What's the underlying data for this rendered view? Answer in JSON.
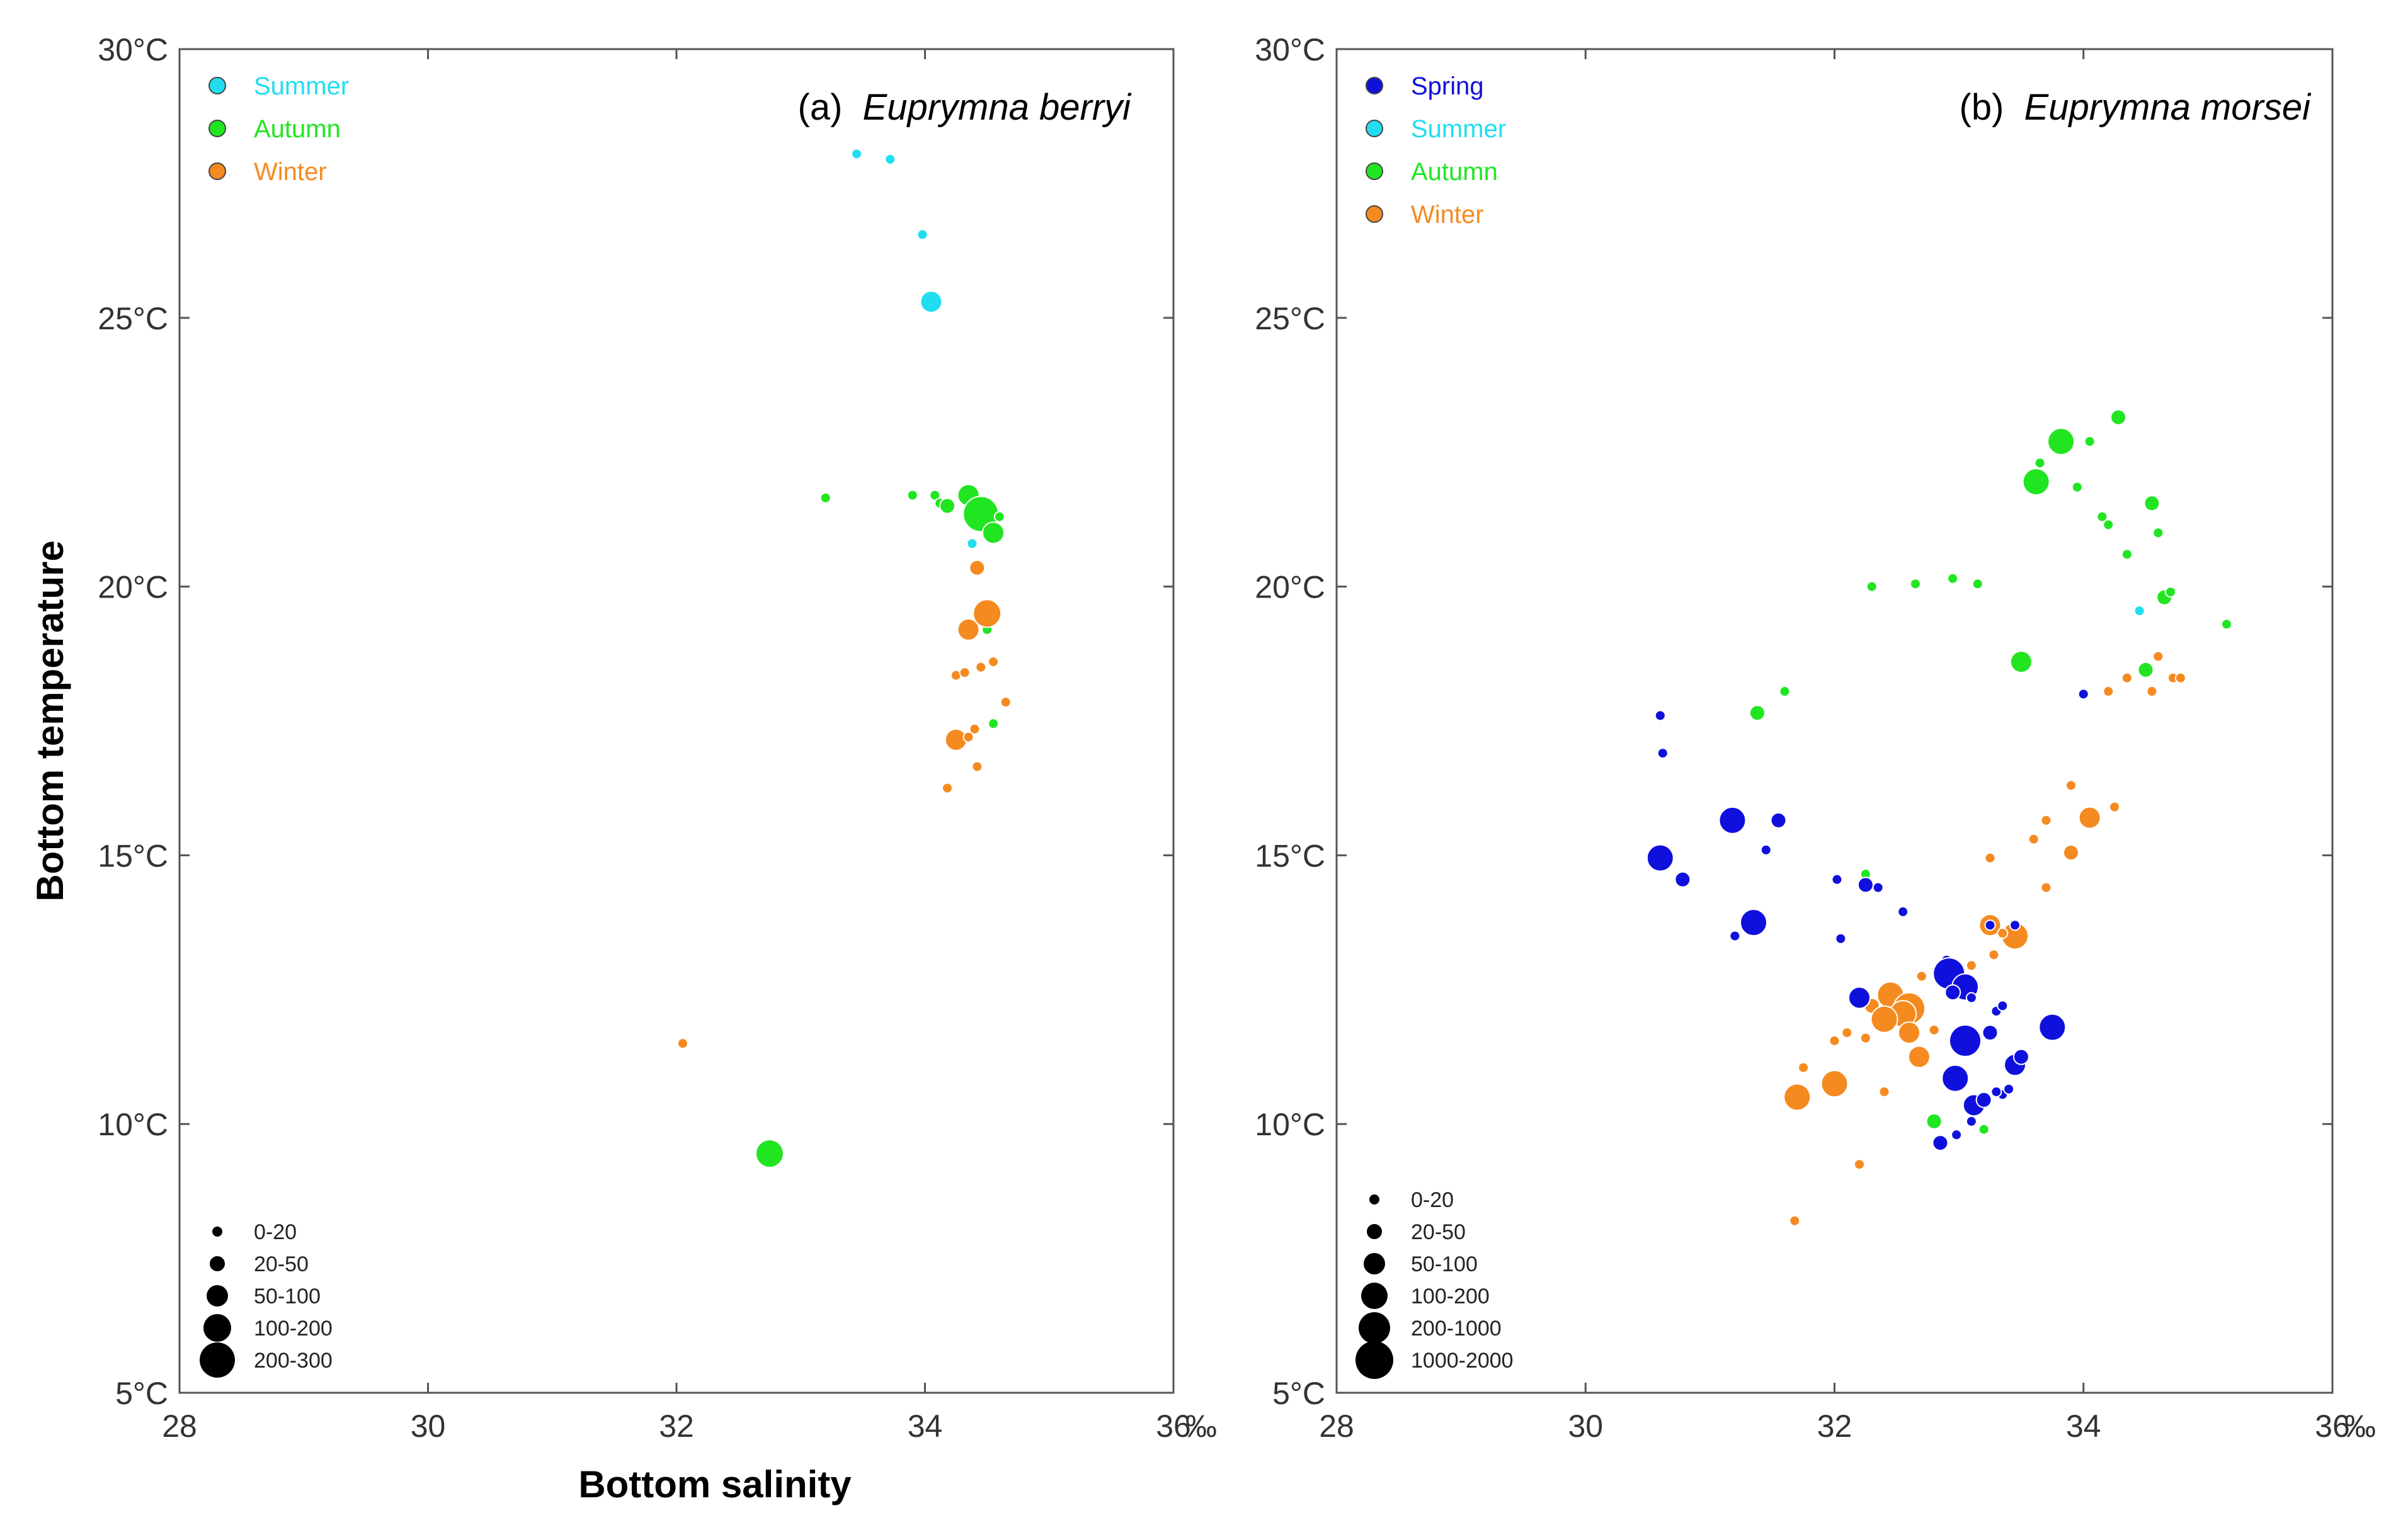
{
  "colors": {
    "Spring": "#1010dd",
    "Summer": "#22ddf0",
    "Autumn": "#22e522",
    "Winter": "#f58a20"
  },
  "axis": {
    "xlabel": "Bottom salinity",
    "ylabel": "Bottom temperature",
    "xunit": "‰"
  },
  "chart_data": [
    {
      "type": "scatter",
      "title_prefix": "(a)",
      "title_species": "Euprymna berryi",
      "xlabel": "Bottom salinity",
      "ylabel": "Bottom temperature",
      "xlim": [
        28,
        36
      ],
      "ylim": [
        5,
        30
      ],
      "xticks": [
        28,
        30,
        32,
        34,
        36
      ],
      "yticks": [
        5,
        10,
        15,
        20,
        25,
        30
      ],
      "xtick_labels": [
        "28",
        "30",
        "32",
        "34",
        "36"
      ],
      "ytick_labels": [
        "5°C",
        "10°C",
        "15°C",
        "20°C",
        "25°C",
        "30°C"
      ],
      "legend_seasons": [
        "Summer",
        "Autumn",
        "Winter"
      ],
      "size_classes": [
        "0-20",
        "20-50",
        "50-100",
        "100-200",
        "200-300"
      ],
      "series": [
        {
          "name": "Summer",
          "points": [
            [
              33.45,
              28.05,
              0
            ],
            [
              33.72,
              27.95,
              0
            ],
            [
              33.98,
              26.55,
              0
            ],
            [
              34.05,
              25.3,
              2
            ],
            [
              34.38,
              20.8,
              0
            ]
          ]
        },
        {
          "name": "Autumn",
          "points": [
            [
              33.2,
              21.65,
              0
            ],
            [
              33.9,
              21.7,
              0
            ],
            [
              34.08,
              21.7,
              0
            ],
            [
              34.12,
              21.55,
              0
            ],
            [
              34.18,
              21.5,
              1
            ],
            [
              34.35,
              21.7,
              2
            ],
            [
              34.45,
              21.35,
              4
            ],
            [
              34.55,
              21.0,
              2
            ],
            [
              34.6,
              21.3,
              0
            ],
            [
              34.5,
              19.2,
              0
            ],
            [
              34.55,
              17.45,
              0
            ],
            [
              32.75,
              9.45,
              3
            ]
          ]
        },
        {
          "name": "Winter",
          "points": [
            [
              34.42,
              20.35,
              1
            ],
            [
              34.5,
              19.5,
              3
            ],
            [
              34.35,
              19.2,
              2
            ],
            [
              34.25,
              18.35,
              0
            ],
            [
              34.32,
              18.4,
              0
            ],
            [
              34.45,
              18.5,
              0
            ],
            [
              34.55,
              18.6,
              0
            ],
            [
              34.65,
              17.85,
              0
            ],
            [
              34.25,
              17.15,
              2
            ],
            [
              34.4,
              17.35,
              0
            ],
            [
              34.35,
              17.2,
              0
            ],
            [
              34.42,
              16.65,
              0
            ],
            [
              34.18,
              16.25,
              0
            ],
            [
              32.05,
              11.5,
              0
            ]
          ]
        }
      ]
    },
    {
      "type": "scatter",
      "title_prefix": "(b)",
      "title_species": "Euprymna morsei",
      "xlabel": "Bottom salinity",
      "ylabel": "Bottom temperature",
      "xlim": [
        28,
        36
      ],
      "ylim": [
        5,
        30
      ],
      "xticks": [
        28,
        30,
        32,
        34,
        36
      ],
      "yticks": [
        5,
        10,
        15,
        20,
        25,
        30
      ],
      "xtick_labels": [
        "28",
        "30",
        "32",
        "34",
        "36"
      ],
      "ytick_labels": [
        "5°C",
        "10°C",
        "15°C",
        "20°C",
        "25°C",
        "30°C"
      ],
      "legend_seasons": [
        "Spring",
        "Summer",
        "Autumn",
        "Winter"
      ],
      "size_classes": [
        "0-20",
        "20-50",
        "50-100",
        "100-200",
        "200-1000",
        "1000-2000"
      ],
      "series": [
        {
          "name": "Autumn",
          "points": [
            [
              34.28,
              23.15,
              1
            ],
            [
              33.82,
              22.7,
              3
            ],
            [
              34.05,
              22.7,
              0
            ],
            [
              33.65,
              22.3,
              0
            ],
            [
              33.62,
              21.95,
              3
            ],
            [
              33.95,
              21.85,
              0
            ],
            [
              34.55,
              21.55,
              1
            ],
            [
              34.15,
              21.3,
              0
            ],
            [
              34.2,
              21.15,
              0
            ],
            [
              34.6,
              21.0,
              0
            ],
            [
              34.35,
              20.6,
              0
            ],
            [
              34.65,
              19.8,
              1
            ],
            [
              34.7,
              19.9,
              0
            ],
            [
              32.3,
              20.0,
              0
            ],
            [
              32.65,
              20.05,
              0
            ],
            [
              32.95,
              20.15,
              0
            ],
            [
              33.15,
              20.05,
              0
            ],
            [
              35.15,
              19.3,
              0
            ],
            [
              33.5,
              18.6,
              2
            ],
            [
              34.5,
              18.45,
              1
            ],
            [
              31.38,
              17.65,
              1
            ],
            [
              31.6,
              18.05,
              0
            ],
            [
              32.25,
              14.65,
              0
            ],
            [
              33.2,
              10.45,
              0
            ],
            [
              32.8,
              10.05,
              1
            ],
            [
              33.2,
              9.9,
              0
            ]
          ]
        },
        {
          "name": "Summer",
          "points": [
            [
              34.45,
              19.55,
              0
            ]
          ]
        },
        {
          "name": "Winter",
          "points": [
            [
              34.6,
              18.7,
              0
            ],
            [
              34.55,
              18.05,
              0
            ],
            [
              34.72,
              18.3,
              0
            ],
            [
              34.78,
              18.3,
              0
            ],
            [
              34.35,
              18.3,
              0
            ],
            [
              34.2,
              18.05,
              0
            ],
            [
              33.9,
              16.3,
              0
            ],
            [
              34.25,
              15.9,
              0
            ],
            [
              34.05,
              15.7,
              2
            ],
            [
              33.7,
              15.65,
              0
            ],
            [
              33.9,
              15.05,
              1
            ],
            [
              33.6,
              15.3,
              0
            ],
            [
              33.25,
              14.95,
              0
            ],
            [
              33.7,
              14.4,
              0
            ],
            [
              33.45,
              13.5,
              3
            ],
            [
              33.25,
              13.7,
              2
            ],
            [
              33.35,
              13.55,
              0
            ],
            [
              33.28,
              13.15,
              0
            ],
            [
              33.1,
              12.95,
              0
            ],
            [
              32.7,
              12.75,
              0
            ],
            [
              32.95,
              12.8,
              0
            ],
            [
              32.45,
              12.4,
              3
            ],
            [
              32.3,
              12.2,
              1
            ],
            [
              32.6,
              12.15,
              4
            ],
            [
              32.55,
              12.05,
              3
            ],
            [
              32.4,
              11.95,
              3
            ],
            [
              32.6,
              11.7,
              2
            ],
            [
              32.8,
              11.75,
              0
            ],
            [
              32.25,
              11.6,
              0
            ],
            [
              32.68,
              11.25,
              2
            ],
            [
              32.0,
              11.55,
              0
            ],
            [
              32.1,
              11.7,
              0
            ],
            [
              31.75,
              11.05,
              0
            ],
            [
              32.0,
              10.75,
              3
            ],
            [
              31.7,
              10.5,
              3
            ],
            [
              32.4,
              10.6,
              0
            ],
            [
              32.2,
              9.25,
              0
            ],
            [
              31.68,
              8.2,
              0
            ]
          ]
        },
        {
          "name": "Spring",
          "points": [
            [
              30.6,
              17.6,
              0
            ],
            [
              30.62,
              16.9,
              0
            ],
            [
              30.6,
              14.95,
              3
            ],
            [
              30.78,
              14.55,
              1
            ],
            [
              31.18,
              15.65,
              3
            ],
            [
              31.55,
              15.65,
              1
            ],
            [
              31.45,
              15.1,
              0
            ],
            [
              31.35,
              13.75,
              3
            ],
            [
              31.2,
              13.5,
              0
            ],
            [
              32.02,
              14.55,
              0
            ],
            [
              32.05,
              13.45,
              0
            ],
            [
              32.25,
              14.45,
              1
            ],
            [
              32.35,
              14.4,
              0
            ],
            [
              32.55,
              13.95,
              0
            ],
            [
              33.25,
              13.7,
              0
            ],
            [
              33.45,
              13.7,
              0
            ],
            [
              32.9,
              13.05,
              0
            ],
            [
              32.92,
              12.8,
              4
            ],
            [
              33.05,
              12.55,
              3
            ],
            [
              32.95,
              12.45,
              1
            ],
            [
              33.1,
              12.35,
              0
            ],
            [
              32.2,
              12.35,
              2
            ],
            [
              33.3,
              12.1,
              0
            ],
            [
              33.35,
              12.2,
              0
            ],
            [
              33.25,
              11.7,
              1
            ],
            [
              33.75,
              11.8,
              3
            ],
            [
              33.05,
              11.55,
              4
            ],
            [
              33.45,
              11.1,
              2
            ],
            [
              33.5,
              11.25,
              1
            ],
            [
              32.97,
              10.85,
              3
            ],
            [
              33.35,
              10.55,
              0
            ],
            [
              33.4,
              10.65,
              0
            ],
            [
              33.12,
              10.35,
              2
            ],
            [
              33.2,
              10.45,
              1
            ],
            [
              33.1,
              10.05,
              0
            ],
            [
              33.3,
              10.6,
              0
            ],
            [
              32.85,
              9.65,
              1
            ],
            [
              32.98,
              9.8,
              0
            ],
            [
              34.0,
              18.0,
              0
            ]
          ]
        }
      ]
    }
  ]
}
